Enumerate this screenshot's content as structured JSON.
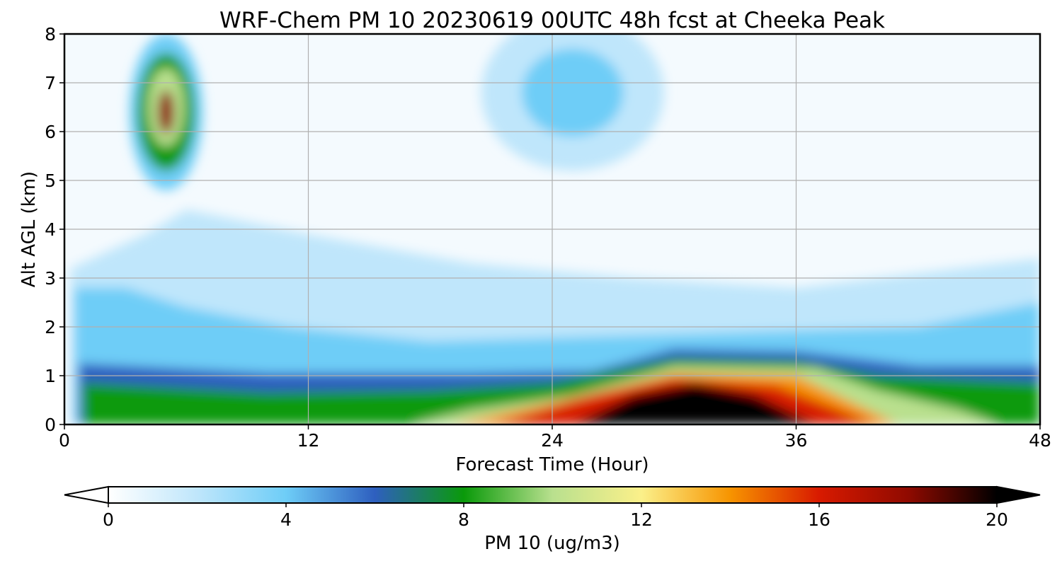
{
  "chart_data": {
    "type": "heatmap",
    "title": "WRF-Chem PM 10  20230619 00UTC 48h fcst at Cheeka Peak",
    "xlabel": "Forecast Time (Hour)",
    "ylabel": "Alt AGL (km)",
    "xlim": [
      0,
      48
    ],
    "ylim": [
      0,
      8
    ],
    "xticks": [
      0,
      12,
      24,
      36,
      48
    ],
    "yticks": [
      0,
      1,
      2,
      3,
      4,
      5,
      6,
      7,
      8
    ],
    "grid": true,
    "colorbar": {
      "label": "PM 10  (ug/m3)",
      "min": 0,
      "max": 20,
      "ticks": [
        0,
        4,
        8,
        12,
        16,
        20
      ],
      "orientation": "horizontal",
      "placement": "bottom",
      "extend": "both",
      "colors": [
        "#ffffff",
        "#bfe6fb",
        "#6ecdf7",
        "#2e5fbf",
        "#0a9a0a",
        "#b9e08e",
        "#fbf08a",
        "#f79400",
        "#d81a00",
        "#900a00",
        "#000000"
      ]
    },
    "features": [
      {
        "x": 5,
        "y": 6.4,
        "value": 17,
        "description": "plume aloft"
      },
      {
        "x": 30,
        "y": 0.3,
        "value": 20,
        "description": "surface maximum"
      },
      {
        "x": 25,
        "y": 6.8,
        "value": 3,
        "description": "upper-level maximum"
      }
    ]
  }
}
